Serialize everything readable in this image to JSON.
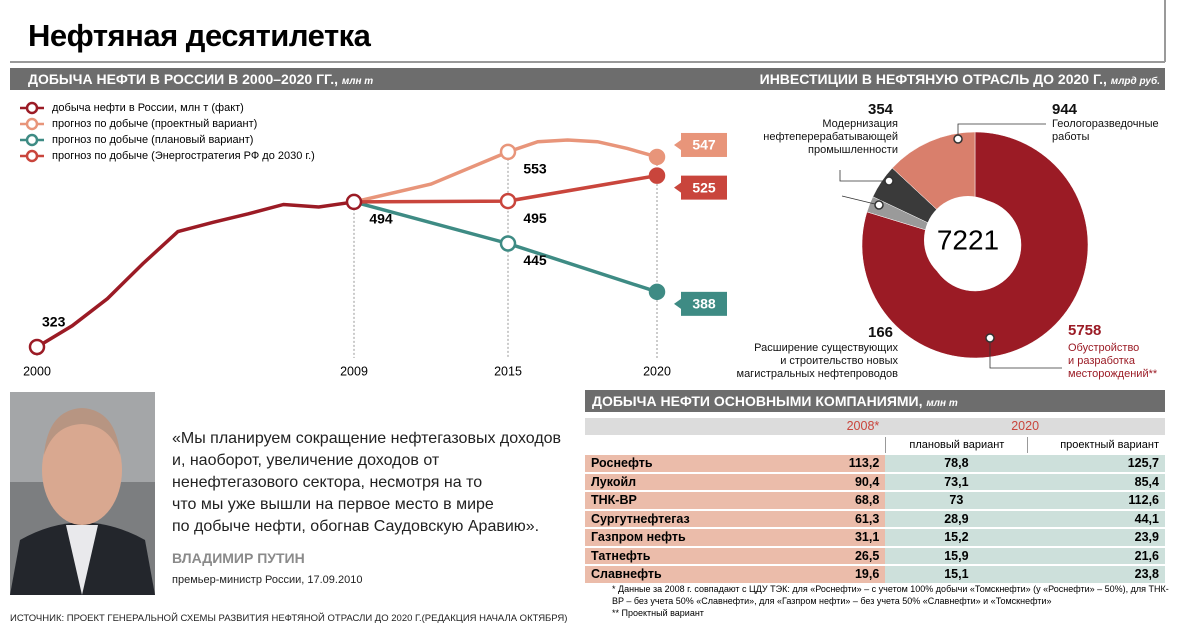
{
  "header": {
    "title": "Нефтяная десятилетка"
  },
  "chart_data": [
    {
      "type": "line",
      "title": "ДОБЫЧА НЕФТИ В РОССИИ В 2000–2020 ГГ.,",
      "unit": "млн т",
      "xlim": [
        2000,
        2020
      ],
      "xticks": [
        2000,
        2009,
        2015,
        2020
      ],
      "ylim": [
        300,
        600
      ],
      "series": [
        {
          "name": "добыча нефти в России, млн т (факт)",
          "color": "#9b1b25",
          "x": [
            2000,
            2001,
            2002,
            2003,
            2004,
            2005,
            2006,
            2007,
            2008,
            2009
          ],
          "values": [
            323,
            348,
            380,
            421,
            459,
            470,
            480,
            491,
            488,
            494
          ]
        },
        {
          "name": "прогноз по добыче (проектный вариант)",
          "color": "#e8957a",
          "x": [
            2009,
            2012,
            2015,
            2016,
            2017,
            2018,
            2019,
            2020
          ],
          "values": [
            494,
            515,
            553,
            565,
            567,
            565,
            557,
            547
          ]
        },
        {
          "name": "прогноз по добыче (плановый вариант)",
          "color": "#3e8b84",
          "x": [
            2009,
            2015,
            2020
          ],
          "values": [
            494,
            445,
            388
          ]
        },
        {
          "name": "прогноз по добыче (Энергостратегия РФ до 2030 г.)",
          "color": "#c9453c",
          "x": [
            2009,
            2015,
            2020
          ],
          "values": [
            494,
            495,
            525
          ]
        }
      ]
    },
    {
      "type": "pie",
      "title": "ИНВЕСТИЦИИ В НЕФТЯНУЮ ОТРАСЛЬ ДО 2020 Г.,",
      "unit": "млрд руб.",
      "total": 7221,
      "categories": [
        "Обустройство\nи разработка\nместорождений**",
        "Расширение существующих\nи строительство новых\nмагистральных нефтепроводов",
        "Модернизация\nнефтеперерабатывающей\nпромышленности",
        "Геологоразведочные\nработы"
      ],
      "values": [
        5758,
        166,
        354,
        944
      ],
      "colors": [
        "#9b1b25",
        "#9a9a9a",
        "#3a3a3a",
        "#d97f6c"
      ]
    }
  ],
  "table": {
    "title": "ДОБЫЧА НЕФТИ ОСНОВНЫМИ КОМПАНИЯМИ,",
    "unit": "млн т",
    "headers": [
      "2008*",
      "2020"
    ],
    "subheaders": [
      "плановый вариант",
      "проектный вариант"
    ],
    "rows": [
      [
        "Роснефть",
        "113,2",
        "78,8",
        "125,7"
      ],
      [
        "Лукойл",
        "90,4",
        "73,1",
        "85,4"
      ],
      [
        "ТНК-BP",
        "68,8",
        "73",
        "112,6"
      ],
      [
        "Сургутнефтегаз",
        "61,3",
        "28,9",
        "44,1"
      ],
      [
        "Газпром нефть",
        "31,1",
        "15,2",
        "23,9"
      ],
      [
        "Татнефть",
        "26,5",
        "15,9",
        "21,6"
      ],
      [
        "Славнефть",
        "19,6",
        "15,1",
        "23,8"
      ]
    ]
  },
  "quote": {
    "text": "«Мы планируем сокращение нефтегазовых доходов\nи, наоборот, увеличение доходов от\nненефтегазового сектора, несмотря на то\nчто мы уже вышли на первое место в мире\nпо добыче нефти, обогнав Саудовскую Аравию».",
    "author": "ВЛАДИМИР ПУТИН",
    "position": "премьер-министр России, 17.09.2010"
  },
  "footnotes": [
    "*  Данные за 2008 г. совпадают с ЦДУ ТЭК: для «Роснефти» – с учетом 100% добычи «Томскнефти» (у «Роснефти» – 50%), для ТНК-BP – без учета 50% «Славнефти», для «Газпром нефти» – без учета 50% «Славнефти» и «Томскнефти»",
    "**  Проектный вариант"
  ],
  "source": "ИСТОЧНИК: ПРОЕКТ ГЕНЕРАЛЬНОЙ СХЕМЫ РАЗВИТИЯ НЕФТЯНОЙ ОТРАСЛИ ДО 2020 Г.(РЕДАКЦИЯ НАЧАЛА ОКТЯБРЯ)"
}
